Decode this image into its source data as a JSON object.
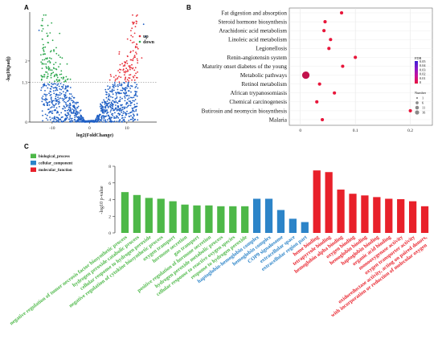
{
  "chart_data": [
    {
      "panel": "A",
      "type": "scatter",
      "xlabel": "log2(FoldChange)",
      "ylabel": "-log10(padj)",
      "xticks": [
        {
          "v": -10,
          "label": "-10"
        },
        {
          "v": 0,
          "label": "0"
        },
        {
          "v": 10,
          "label": "10"
        }
      ],
      "yticks": [
        {
          "v": 0,
          "label": "0"
        },
        {
          "v": 1.3,
          "label": "1.3"
        },
        {
          "v": 2,
          "label": "2"
        }
      ],
      "xlim": [
        -16,
        18
      ],
      "ylim": [
        0,
        3.6
      ],
      "threshold": 1.3,
      "legend": [
        {
          "key": "up",
          "label": "up",
          "color": "#e8303a"
        },
        {
          "key": "down",
          "label": "down",
          "color": "#2fa84f"
        }
      ],
      "colors": {
        "up": "#e8303a",
        "down": "#2fa84f",
        "ns": "#1f5fc4"
      }
    },
    {
      "panel": "B",
      "type": "scatter",
      "xticks": [
        {
          "v": 0,
          "label": "0"
        },
        {
          "v": 0.1,
          "label": "0.1"
        },
        {
          "v": 0.2,
          "label": "0.2"
        }
      ],
      "xlim": [
        -0.02,
        0.24
      ],
      "terms": [
        {
          "name": "Fat digestion and absorption",
          "x": 0.075,
          "size": 1,
          "fdr": 0.005
        },
        {
          "name": "Steroid hormone biosynthesis",
          "x": 0.045,
          "size": 1,
          "fdr": 0.006
        },
        {
          "name": "Arachidonic acid metabolism",
          "x": 0.043,
          "size": 1,
          "fdr": 0.006
        },
        {
          "name": "Linoleic acid metabolism",
          "x": 0.055,
          "size": 1,
          "fdr": 0.006
        },
        {
          "name": "Legionellosis",
          "x": 0.052,
          "size": 1,
          "fdr": 0.007
        },
        {
          "name": "Renin-angiotensin system",
          "x": 0.1,
          "size": 1,
          "fdr": 0.008
        },
        {
          "name": "Maturity onset diabetes of the young",
          "x": 0.077,
          "size": 1,
          "fdr": 0.009
        },
        {
          "name": "Metabolic pathways",
          "x": 0.01,
          "size": 16,
          "fdr": 0.02
        },
        {
          "name": "Retinol metabolism",
          "x": 0.035,
          "size": 1,
          "fdr": 0.01
        },
        {
          "name": "African trypanosomiasis",
          "x": 0.062,
          "size": 1,
          "fdr": 0.011
        },
        {
          "name": "Chemical carcinogenesis",
          "x": 0.03,
          "size": 1,
          "fdr": 0.012
        },
        {
          "name": "Butirosin and neomycin biosynthesis",
          "x": 0.2,
          "size": 1,
          "fdr": 0.013
        },
        {
          "name": "Malaria",
          "x": 0.04,
          "size": 1,
          "fdr": 0.014
        }
      ],
      "color_legend": {
        "title": "FDR",
        "ticks": [
          "0.05",
          "0.04",
          "0.03",
          "0.02",
          "0.01",
          "0"
        ],
        "colors": [
          "#3a1fd6",
          "#8a18c8",
          "#c8109a",
          "#e8123a"
        ]
      },
      "size_legend": {
        "title": "Number",
        "items": [
          {
            "v": 1,
            "label": "1"
          },
          {
            "v": 6,
            "label": "6"
          },
          {
            "v": 11,
            "label": "11"
          },
          {
            "v": 16,
            "label": "16"
          }
        ]
      }
    },
    {
      "panel": "C",
      "type": "bar",
      "ylabel": "-log10 p-value",
      "ylim": [
        0,
        8
      ],
      "yticks": [
        0,
        2,
        4,
        6,
        8
      ],
      "legend": [
        {
          "key": "bp",
          "label": "biological_process",
          "color": "#4db848"
        },
        {
          "key": "cc",
          "label": "cellular_component",
          "color": "#2c84c8"
        },
        {
          "key": "mf",
          "label": "molecular_function",
          "color": "#e8202a"
        }
      ],
      "bars": [
        {
          "label": "negative regulation of tumor necrosis factor biosynthetic process",
          "value": 4.9,
          "group": "bp"
        },
        {
          "label": "hydrogen peroxide catabolic process",
          "value": 4.55,
          "group": "bp"
        },
        {
          "label": "cellular response to hydrogen peroxide",
          "value": 4.2,
          "group": "bp"
        },
        {
          "label": "negative regulation of cytokine biosynthetic process",
          "value": 4.1,
          "group": "bp"
        },
        {
          "label": "oxygen transport",
          "value": 3.8,
          "group": "bp"
        },
        {
          "label": "hormone secretion",
          "value": 3.4,
          "group": "bp"
        },
        {
          "label": "gas transport",
          "value": 3.3,
          "group": "bp"
        },
        {
          "label": "positive regulation of hormone secretion",
          "value": 3.3,
          "group": "bp"
        },
        {
          "label": "hydrogen peroxide metabolic process",
          "value": 3.2,
          "group": "bp"
        },
        {
          "label": "cellular response to reactive oxygen species",
          "value": 3.2,
          "group": "bp"
        },
        {
          "label": "response to hydrogen peroxide",
          "value": 3.2,
          "group": "bp"
        },
        {
          "label": "haptoglobin-hemoglobin complex",
          "value": 4.1,
          "group": "cc"
        },
        {
          "label": "hemoglobin complex",
          "value": 4.1,
          "group": "cc"
        },
        {
          "label": "COP9 signalosome",
          "value": 2.75,
          "group": "cc"
        },
        {
          "label": "extracellular space",
          "value": 1.7,
          "group": "cc"
        },
        {
          "label": "extracellular region part",
          "value": 1.3,
          "group": "cc"
        },
        {
          "label": "heme binding",
          "value": 7.5,
          "group": "mf"
        },
        {
          "label": "tetrapyrrole binding",
          "value": 7.3,
          "group": "mf"
        },
        {
          "label": "hemoglobin alpha binding",
          "value": 5.2,
          "group": "mf"
        },
        {
          "label": "oxygen binding",
          "value": 4.7,
          "group": "mf"
        },
        {
          "label": "hemoglobin binding",
          "value": 4.5,
          "group": "mf"
        },
        {
          "label": "haptoglobin binding",
          "value": 4.3,
          "group": "mf"
        },
        {
          "label": "organic acid binding",
          "value": 4.1,
          "group": "mf"
        },
        {
          "label": "monooxygenase activity",
          "value": 4.05,
          "group": "mf"
        },
        {
          "label": "oxygen transporter activity",
          "value": 3.8,
          "group": "mf"
        },
        {
          "label": "oxidoreductase activity, acting on paired donors,",
          "label2": "with incorporation or reduction of molecular oxygen",
          "value": 3.2,
          "group": "mf"
        }
      ]
    }
  ]
}
